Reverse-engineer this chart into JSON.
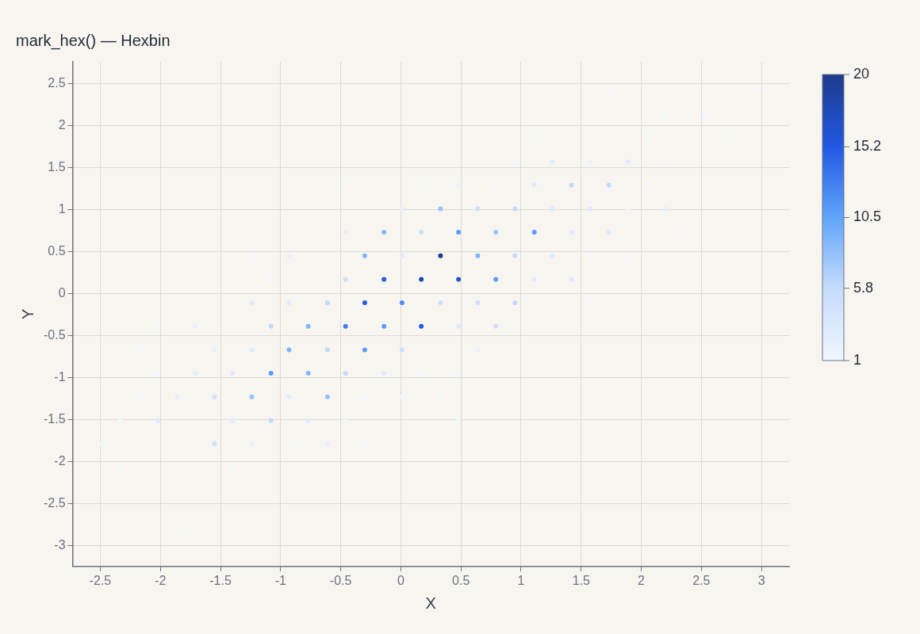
{
  "chart_data": {
    "type": "scatter",
    "title": "mark_hex() — Hexbin",
    "xlabel": "X",
    "ylabel": "Y",
    "x": [
      1.73,
      2.98,
      2.2,
      2.52,
      1.11,
      2.05,
      2.67,
      2.98,
      0.95,
      1.26,
      1.58,
      1.89,
      2.2,
      -0.46,
      0.17,
      0.48,
      0.79,
      1.11,
      1.42,
      1.73,
      2.05,
      0.01,
      0.33,
      0.64,
      0.95,
      1.26,
      1.58,
      1.89,
      2.2,
      -0.46,
      -0.14,
      0.17,
      0.48,
      0.79,
      1.11,
      1.42,
      1.73,
      2.36,
      -1.24,
      -0.93,
      -0.61,
      -0.3,
      0.01,
      0.33,
      0.64,
      0.95,
      1.26,
      1.58,
      1.89,
      -1.08,
      -0.46,
      -0.14,
      0.17,
      0.48,
      0.79,
      1.11,
      1.42,
      -1.24,
      -0.93,
      -0.61,
      -0.3,
      0.01,
      0.33,
      0.64,
      0.95,
      1.58,
      -2.02,
      -1.71,
      -1.08,
      -0.77,
      -0.46,
      -0.14,
      0.17,
      0.48,
      0.79,
      -2.18,
      -1.55,
      -1.24,
      -0.93,
      -0.61,
      -0.3,
      0.01,
      0.64,
      -2.02,
      -1.71,
      -1.4,
      -1.08,
      -0.77,
      -0.46,
      -0.14,
      0.17,
      0.48,
      -2.18,
      -1.86,
      -1.55,
      -1.24,
      -0.93,
      -0.61,
      -0.3,
      0.01,
      0.33,
      -2.33,
      -2.02,
      -1.4,
      -1.08,
      -0.77,
      -0.46,
      0.48,
      -2.49,
      -1.55,
      -1.24,
      -0.93,
      -0.61,
      -0.3,
      -2.33,
      -1.4,
      -1.86
    ],
    "values": [
      2.41,
      2.41,
      2.13,
      2.13,
      1.85,
      1.85,
      1.85,
      1.85,
      1.57,
      1.57,
      1.57,
      1.57,
      1.57,
      1.29,
      1.29,
      1.29,
      1.29,
      1.29,
      1.29,
      1.29,
      1.29,
      1.01,
      1.01,
      1.01,
      1.01,
      1.01,
      1.01,
      1.01,
      1.01,
      0.73,
      0.73,
      0.73,
      0.73,
      0.73,
      0.73,
      0.73,
      0.73,
      0.73,
      0.45,
      0.45,
      0.45,
      0.45,
      0.45,
      0.45,
      0.45,
      0.45,
      0.45,
      0.45,
      0.45,
      0.17,
      0.17,
      0.17,
      0.17,
      0.17,
      0.17,
      0.17,
      0.17,
      -0.11,
      -0.11,
      -0.11,
      -0.11,
      -0.11,
      -0.11,
      -0.11,
      -0.11,
      -0.11,
      -0.39,
      -0.39,
      -0.39,
      -0.39,
      -0.39,
      -0.39,
      -0.39,
      -0.39,
      -0.39,
      -0.67,
      -0.67,
      -0.67,
      -0.67,
      -0.67,
      -0.67,
      -0.67,
      -0.67,
      -0.95,
      -0.95,
      -0.95,
      -0.95,
      -0.95,
      -0.95,
      -0.95,
      -0.95,
      -0.95,
      -1.23,
      -1.23,
      -1.23,
      -1.23,
      -1.23,
      -1.23,
      -1.23,
      -1.23,
      -1.23,
      -1.51,
      -1.51,
      -1.51,
      -1.51,
      -1.51,
      -1.51,
      -1.51,
      -1.79,
      -1.79,
      -1.79,
      -1.79,
      -1.79,
      -1.79,
      -2.07,
      -2.07,
      -2.91
    ],
    "cvalues": [
      1,
      1,
      1,
      1,
      1,
      1,
      1,
      1,
      1,
      3,
      2,
      3,
      1,
      1,
      1,
      2,
      1,
      3,
      6,
      6,
      1,
      2,
      8,
      5,
      6,
      3,
      3,
      1,
      2,
      2,
      9,
      5,
      11,
      8,
      11,
      3,
      3,
      1,
      1,
      2,
      1,
      9,
      3,
      20,
      9,
      6,
      3,
      1,
      1,
      1,
      5,
      15,
      18,
      16,
      11,
      3,
      3,
      3,
      3,
      6,
      15,
      12,
      5,
      5,
      6,
      1,
      1,
      2,
      6,
      9,
      13,
      11,
      15,
      3,
      5,
      1,
      2,
      3,
      9,
      6,
      11,
      5,
      2,
      1,
      2,
      3,
      11,
      9,
      6,
      3,
      1,
      1,
      1,
      2,
      5,
      8,
      3,
      8,
      1,
      1,
      1,
      1,
      3,
      3,
      6,
      3,
      1,
      1,
      1,
      5,
      2,
      1,
      2,
      1,
      1,
      1,
      1
    ],
    "clim": [
      1,
      20
    ],
    "cticks": [
      1,
      5.8,
      10.5,
      15.2,
      20
    ],
    "xlim": [
      -2.73,
      3.23
    ],
    "ylim": [
      -3.25,
      2.76
    ],
    "xticks": [
      -2.5,
      -2,
      -1.5,
      -1,
      -0.5,
      0,
      0.5,
      1,
      1.5,
      2,
      2.5,
      3
    ],
    "yticks": [
      -3,
      -2.5,
      -2,
      -1.5,
      -1,
      -0.5,
      0,
      0.5,
      1,
      1.5,
      2,
      2.5
    ],
    "grid": true,
    "marker": "circle"
  }
}
